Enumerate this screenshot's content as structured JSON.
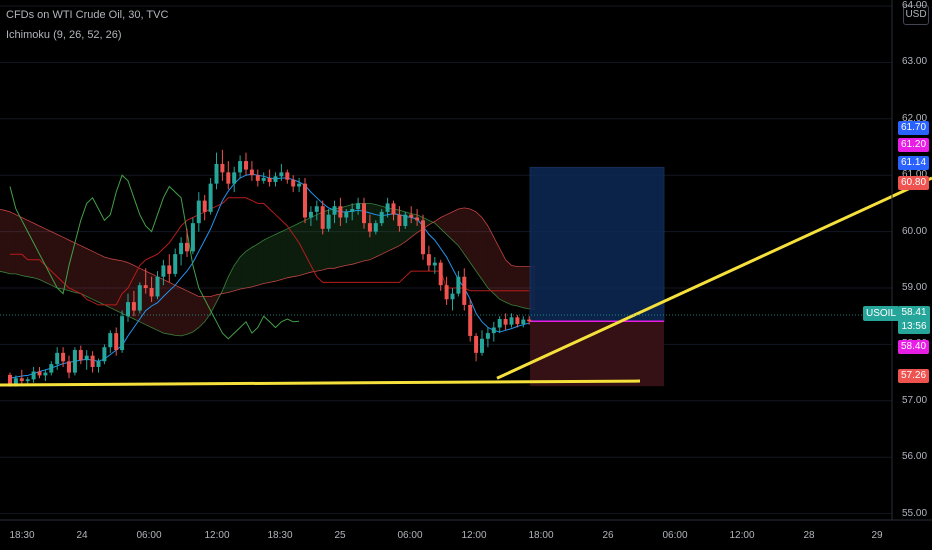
{
  "legend": {
    "title": "CFDs on WTI Crude Oil, 30, TVC",
    "indicator": "Ichimoku (9, 26, 52, 26)"
  },
  "currency_button": "USD",
  "symbol_tag": "USOIL",
  "countdown": "13:56",
  "colors": {
    "up": "#26a69a",
    "down": "#ef5350",
    "conversion": "#2196f3",
    "base": "#b71c1c",
    "lagging": "#43a047",
    "spanA": "#a5d6a7",
    "spanB": "#ef5350",
    "target_zone": "#0d2a55",
    "stop_zone": "#3b1216",
    "trendline": "#f5e03c",
    "magenta": "#e91ee6"
  },
  "chart_data": {
    "type": "candlestick",
    "title": "CFDs on WTI Crude Oil, 30, TVC",
    "y_ticks": [
      "64.00",
      "63.00",
      "62.00",
      "61.00",
      "60.00",
      "59.00",
      "58.00",
      "57.00",
      "56.00",
      "55.00"
    ],
    "x_ticks": [
      "18:30",
      "24",
      "06:00",
      "12:00",
      "18:30",
      "25",
      "06:00",
      "12:00",
      "18:00",
      "26",
      "06:00",
      "12:00",
      "28",
      "29"
    ],
    "ylim": [
      54.5,
      64.2
    ],
    "price_labels": [
      {
        "value": "61.70",
        "color": "#2962ff"
      },
      {
        "value": "61.20",
        "color": "#e91ee6"
      },
      {
        "value": "61.14",
        "color": "#2962ff"
      },
      {
        "value": "60.80",
        "color": "#ef5350"
      },
      {
        "value": "58.40",
        "color": "#e91ee6"
      },
      {
        "value": "57.26",
        "color": "#ef5350"
      }
    ],
    "last_price": "58.41",
    "candles": [
      [
        57.46,
        57.5,
        57.25,
        57.3
      ],
      [
        57.3,
        57.45,
        57.25,
        57.4
      ],
      [
        57.4,
        57.55,
        57.3,
        57.35
      ],
      [
        57.35,
        57.42,
        57.28,
        57.38
      ],
      [
        57.38,
        57.6,
        57.32,
        57.52
      ],
      [
        57.52,
        57.6,
        57.4,
        57.45
      ],
      [
        57.45,
        57.55,
        57.35,
        57.5
      ],
      [
        57.5,
        57.7,
        57.45,
        57.65
      ],
      [
        57.65,
        57.95,
        57.55,
        57.85
      ],
      [
        57.85,
        57.95,
        57.6,
        57.7
      ],
      [
        57.7,
        57.8,
        57.4,
        57.5
      ],
      [
        57.5,
        57.95,
        57.45,
        57.9
      ],
      [
        57.9,
        57.98,
        57.65,
        57.72
      ],
      [
        57.72,
        57.9,
        57.55,
        57.8
      ],
      [
        57.8,
        57.88,
        57.5,
        57.6
      ],
      [
        57.6,
        57.75,
        57.5,
        57.7
      ],
      [
        57.7,
        58.0,
        57.65,
        57.95
      ],
      [
        57.95,
        58.25,
        57.85,
        58.2
      ],
      [
        58.2,
        58.3,
        57.8,
        57.9
      ],
      [
        57.9,
        58.6,
        57.85,
        58.5
      ],
      [
        58.5,
        58.9,
        58.4,
        58.75
      ],
      [
        58.75,
        58.95,
        58.5,
        58.6
      ],
      [
        58.6,
        59.1,
        58.55,
        59.05
      ],
      [
        59.05,
        59.35,
        58.9,
        59.0
      ],
      [
        59.0,
        59.2,
        58.75,
        58.85
      ],
      [
        58.85,
        59.3,
        58.8,
        59.2
      ],
      [
        59.2,
        59.5,
        59.05,
        59.4
      ],
      [
        59.4,
        59.6,
        59.1,
        59.25
      ],
      [
        59.25,
        59.7,
        59.2,
        59.6
      ],
      [
        59.6,
        59.9,
        59.4,
        59.8
      ],
      [
        59.8,
        60.05,
        59.55,
        59.65
      ],
      [
        59.65,
        60.25,
        59.6,
        60.15
      ],
      [
        60.15,
        60.7,
        60.0,
        60.55
      ],
      [
        60.55,
        60.65,
        60.2,
        60.35
      ],
      [
        60.35,
        60.95,
        60.3,
        60.85
      ],
      [
        60.85,
        61.4,
        60.75,
        61.2
      ],
      [
        61.2,
        61.45,
        60.9,
        61.05
      ],
      [
        61.05,
        61.25,
        60.75,
        60.85
      ],
      [
        60.85,
        61.15,
        60.7,
        61.05
      ],
      [
        61.05,
        61.35,
        60.95,
        61.25
      ],
      [
        61.25,
        61.4,
        61.0,
        61.1
      ],
      [
        61.1,
        61.25,
        60.9,
        61.0
      ],
      [
        61.0,
        61.1,
        60.8,
        60.9
      ],
      [
        60.9,
        61.05,
        60.85,
        60.95
      ],
      [
        60.95,
        61.1,
        60.8,
        60.88
      ],
      [
        60.88,
        61.05,
        60.8,
        60.98
      ],
      [
        60.98,
        61.2,
        60.9,
        61.05
      ],
      [
        61.05,
        61.1,
        60.85,
        60.92
      ],
      [
        60.92,
        61.0,
        60.7,
        60.8
      ],
      [
        60.8,
        60.95,
        60.7,
        60.85
      ],
      [
        60.85,
        60.95,
        60.15,
        60.25
      ],
      [
        60.25,
        60.45,
        60.1,
        60.35
      ],
      [
        60.35,
        60.55,
        60.2,
        60.45
      ],
      [
        60.45,
        60.55,
        59.95,
        60.05
      ],
      [
        60.05,
        60.4,
        60.0,
        60.3
      ],
      [
        60.3,
        60.55,
        60.15,
        60.45
      ],
      [
        60.45,
        60.6,
        60.1,
        60.25
      ],
      [
        60.25,
        60.4,
        60.15,
        60.35
      ],
      [
        60.35,
        60.5,
        60.2,
        60.4
      ],
      [
        60.4,
        60.6,
        60.3,
        60.5
      ],
      [
        60.5,
        60.6,
        60.05,
        60.15
      ],
      [
        60.15,
        60.3,
        59.9,
        60.0
      ],
      [
        60.0,
        60.2,
        59.95,
        60.15
      ],
      [
        60.15,
        60.4,
        60.1,
        60.35
      ],
      [
        60.35,
        60.6,
        60.25,
        60.5
      ],
      [
        60.5,
        60.55,
        60.2,
        60.3
      ],
      [
        60.3,
        60.45,
        60.0,
        60.1
      ],
      [
        60.1,
        60.35,
        60.05,
        60.3
      ],
      [
        60.3,
        60.45,
        60.15,
        60.25
      ],
      [
        60.25,
        60.4,
        60.1,
        60.2
      ],
      [
        60.2,
        60.3,
        59.5,
        59.6
      ],
      [
        59.6,
        59.75,
        59.3,
        59.4
      ],
      [
        59.4,
        59.55,
        59.25,
        59.45
      ],
      [
        59.45,
        59.5,
        58.95,
        59.05
      ],
      [
        59.05,
        59.2,
        58.7,
        58.8
      ],
      [
        58.8,
        59.0,
        58.6,
        58.9
      ],
      [
        58.9,
        59.3,
        58.85,
        59.2
      ],
      [
        59.2,
        59.35,
        58.6,
        58.7
      ],
      [
        58.7,
        58.8,
        58.05,
        58.15
      ],
      [
        58.15,
        58.2,
        57.7,
        57.85
      ],
      [
        57.85,
        58.25,
        57.8,
        58.1
      ],
      [
        58.1,
        58.3,
        57.95,
        58.2
      ],
      [
        58.2,
        58.4,
        58.05,
        58.3
      ],
      [
        58.3,
        58.5,
        58.2,
        58.45
      ],
      [
        58.45,
        58.55,
        58.25,
        58.35
      ],
      [
        58.35,
        58.55,
        58.3,
        58.48
      ],
      [
        58.48,
        58.52,
        58.3,
        58.36
      ],
      [
        58.36,
        58.5,
        58.3,
        58.44
      ],
      [
        58.44,
        58.5,
        58.35,
        58.41
      ]
    ],
    "conversion_line": [
      57.4,
      57.42,
      57.44,
      57.45,
      57.48,
      57.52,
      57.55,
      57.58,
      57.62,
      57.66,
      57.68,
      57.7,
      57.72,
      57.74,
      57.72,
      57.7,
      57.74,
      57.82,
      57.9,
      57.98,
      58.15,
      58.3,
      58.45,
      58.6,
      58.68,
      58.74,
      58.85,
      58.95,
      59.05,
      59.18,
      59.3,
      59.45,
      59.65,
      59.85,
      60.05,
      60.3,
      60.55,
      60.72,
      60.85,
      60.95,
      61.0,
      61.02,
      61.0,
      60.98,
      60.95,
      60.93,
      60.95,
      60.95,
      60.92,
      60.88,
      60.82,
      60.7,
      60.6,
      60.5,
      60.42,
      60.38,
      60.35,
      60.35,
      60.36,
      60.38,
      60.36,
      60.33,
      60.3,
      60.28,
      60.3,
      60.32,
      60.3,
      60.27,
      60.25,
      60.22,
      60.1,
      59.95,
      59.85,
      59.7,
      59.55,
      59.35,
      59.15,
      59.0,
      58.8,
      58.55,
      58.4,
      58.3,
      58.25,
      58.22,
      58.25,
      58.28,
      58.32,
      58.35,
      58.38
    ],
    "lagging_span": [
      60.8,
      60.4,
      60.2,
      60.0,
      59.8,
      59.6,
      59.4,
      59.2,
      59.0,
      58.9,
      59.4,
      59.8,
      60.2,
      60.5,
      60.6,
      60.4,
      60.2,
      60.3,
      60.7,
      61.0,
      60.9,
      60.6,
      60.3,
      60.1,
      60.0,
      60.3,
      60.6,
      60.8,
      60.7,
      60.6,
      60.0,
      59.4,
      59.0,
      58.8,
      58.6,
      58.4,
      58.2,
      58.1,
      58.2,
      58.3,
      58.4,
      58.2,
      58.3,
      58.5,
      58.4,
      58.3,
      58.4,
      58.45,
      58.4,
      58.41
    ],
    "kumo_span_a": [
      59.3,
      59.3,
      59.28,
      59.25,
      59.25,
      59.22,
      59.2,
      59.18,
      59.15,
      59.1,
      59.05,
      59.0,
      58.98,
      58.95,
      58.92,
      58.9,
      58.85,
      58.8,
      58.75,
      58.7,
      58.65,
      58.6,
      58.55,
      58.5,
      58.45,
      58.4,
      58.35,
      58.3,
      58.25,
      58.2,
      58.18,
      58.16,
      58.15,
      58.18,
      58.22,
      58.3,
      58.4,
      58.55,
      58.75,
      58.95,
      59.2,
      59.4,
      59.55,
      59.65,
      59.72,
      59.78,
      59.85,
      59.9,
      59.95,
      60.0,
      60.05,
      60.1,
      60.15,
      60.2,
      60.25,
      60.3,
      60.35,
      60.38,
      60.4,
      60.42,
      60.45,
      60.48,
      60.5,
      60.5,
      60.5,
      60.48,
      60.45,
      60.42,
      60.4,
      60.38,
      60.35,
      60.32,
      60.3,
      60.25,
      60.2,
      60.15,
      60.05,
      59.95,
      59.85,
      59.75,
      59.6,
      59.45,
      59.3,
      59.15,
      59.0,
      58.9,
      58.8,
      58.75,
      58.7,
      58.68,
      58.65,
      58.63,
      58.62
    ],
    "kumo_span_b": [
      60.4,
      60.4,
      60.38,
      60.35,
      60.3,
      60.25,
      60.2,
      60.15,
      60.1,
      60.05,
      60.0,
      59.95,
      59.9,
      59.85,
      59.8,
      59.75,
      59.7,
      59.65,
      59.6,
      59.55,
      59.52,
      59.5,
      59.48,
      59.45,
      59.4,
      59.35,
      59.3,
      59.25,
      59.2,
      59.15,
      59.1,
      59.05,
      59.0,
      58.95,
      58.9,
      58.85,
      58.85,
      58.85,
      58.88,
      58.9,
      58.92,
      58.95,
      58.98,
      59.0,
      59.02,
      59.05,
      59.08,
      59.1,
      59.12,
      59.15,
      59.18,
      59.2,
      59.22,
      59.25,
      59.28,
      59.3,
      59.32,
      59.35,
      59.35,
      59.38,
      59.4,
      59.42,
      59.45,
      59.48,
      59.5,
      59.55,
      59.6,
      59.65,
      59.7,
      59.75,
      59.82,
      59.9,
      59.98,
      60.05,
      60.12,
      60.18,
      60.25,
      60.3,
      60.35,
      60.4,
      60.42,
      60.4,
      60.35,
      60.25,
      60.1,
      59.9,
      59.7,
      59.5,
      59.4,
      59.38,
      59.38,
      59.38,
      59.38
    ],
    "base_line": [
      59.6,
      59.6,
      59.6,
      59.5,
      59.5,
      59.5,
      59.4,
      59.3,
      59.2,
      59.1,
      59.0,
      58.95,
      58.9,
      58.8,
      58.75,
      58.7,
      58.7,
      58.7,
      58.7,
      58.9,
      59.0,
      59.2,
      59.4,
      59.5,
      59.55,
      59.6,
      59.7,
      59.8,
      59.95,
      60.1,
      60.2,
      60.25,
      60.3,
      60.35,
      60.4,
      60.45,
      60.5,
      60.6,
      60.6,
      60.6,
      60.6,
      60.55,
      60.5,
      60.5,
      60.4,
      60.3,
      60.2,
      60.1,
      59.95,
      59.8,
      59.6,
      59.4,
      59.2,
      59.1,
      59.1,
      59.1,
      59.1,
      59.1,
      59.1,
      59.1,
      59.1,
      59.1,
      59.1,
      59.1,
      59.1,
      59.1,
      59.1,
      59.2,
      59.3,
      59.3,
      59.3,
      59.3,
      59.3,
      59.3,
      59.0,
      59.0,
      59.0,
      59.0,
      58.95,
      58.95,
      58.95,
      58.95,
      58.95,
      58.95,
      58.95,
      58.95,
      58.95,
      58.95,
      58.95
    ],
    "position_tool": {
      "entry": 58.41,
      "target": 61.14,
      "stop": 57.26
    },
    "trendlines": [
      {
        "from": [
          0,
          57.25
        ],
        "to": [
          "end",
          57.3
        ]
      },
      {
        "from": [
          "mid",
          57.4
        ],
        "to": [
          "right",
          60.8
        ]
      }
    ]
  }
}
